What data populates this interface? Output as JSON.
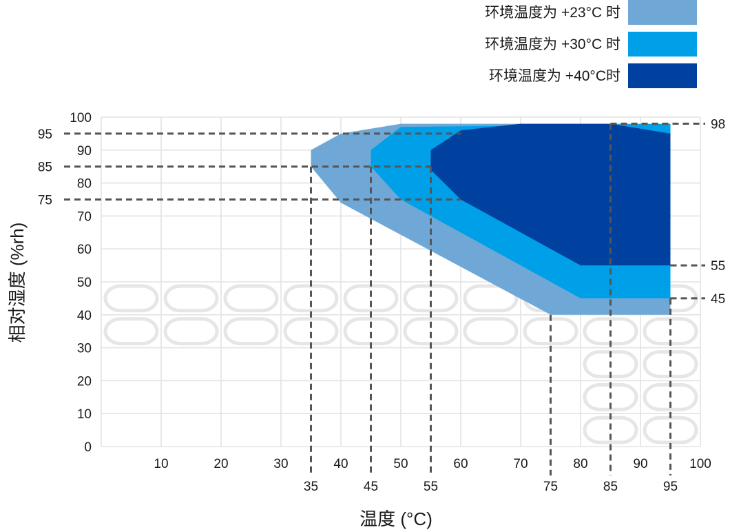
{
  "chart_data": {
    "type": "area",
    "title": "",
    "xlabel": "温度 (°C)",
    "ylabel": "相对湿度 (%rh)",
    "xlim": [
      0,
      100
    ],
    "ylim": [
      0,
      100
    ],
    "x_ticks": [
      10,
      20,
      30,
      40,
      50,
      60,
      70,
      80,
      90,
      100
    ],
    "y_ticks": [
      0,
      10,
      20,
      30,
      40,
      50,
      60,
      70,
      80,
      90,
      100
    ],
    "grid": true,
    "legend_position": "top-right",
    "series": [
      {
        "name": "环境温度为 +23°C 时",
        "color": "#6fa8d6",
        "points": [
          [
            35,
            90
          ],
          [
            40,
            95
          ],
          [
            50,
            98
          ],
          [
            95,
            98
          ],
          [
            95,
            40
          ],
          [
            75,
            40
          ],
          [
            40,
            74
          ],
          [
            35,
            85
          ]
        ]
      },
      {
        "name": "环境温度为 +30°C 时",
        "color": "#00a0e9",
        "points": [
          [
            45,
            90
          ],
          [
            50,
            97
          ],
          [
            95,
            98
          ],
          [
            95,
            45
          ],
          [
            80,
            45
          ],
          [
            50,
            75
          ],
          [
            45,
            85
          ]
        ]
      },
      {
        "name": "环境温度为 +40°C时",
        "color": "#0041a0",
        "points": [
          [
            55,
            90
          ],
          [
            60,
            96
          ],
          [
            70,
            98
          ],
          [
            85,
            98
          ],
          [
            95,
            95
          ],
          [
            95,
            55
          ],
          [
            80,
            55
          ],
          [
            60,
            75
          ],
          [
            55,
            84
          ]
        ]
      }
    ],
    "reference_lines": {
      "horizontal": [
        {
          "y": 95,
          "label": "95",
          "x_from": 0,
          "x_to": 60,
          "side": "left"
        },
        {
          "y": 85,
          "label": "85",
          "x_from": 0,
          "x_to": 55,
          "side": "left"
        },
        {
          "y": 75,
          "label": "75",
          "x_from": 0,
          "x_to": 60,
          "side": "left"
        },
        {
          "y": 98,
          "label": "98",
          "x_from": 85,
          "x_to": 100,
          "side": "right"
        },
        {
          "y": 55,
          "label": "55",
          "x_from": 95,
          "x_to": 100,
          "side": "right"
        },
        {
          "y": 45,
          "label": "45",
          "x_from": 95,
          "x_to": 100,
          "side": "right"
        }
      ],
      "vertical": [
        {
          "x": 35,
          "label": "35",
          "y_top": 85
        },
        {
          "x": 45,
          "label": "45",
          "y_top": 85
        },
        {
          "x": 55,
          "label": "55",
          "y_top": 85
        },
        {
          "x": 75,
          "label": "75",
          "y_top": 40
        },
        {
          "x": 85,
          "label": "85",
          "y_top": 98
        },
        {
          "x": 95,
          "label": "95",
          "y_top": 45
        }
      ]
    }
  }
}
